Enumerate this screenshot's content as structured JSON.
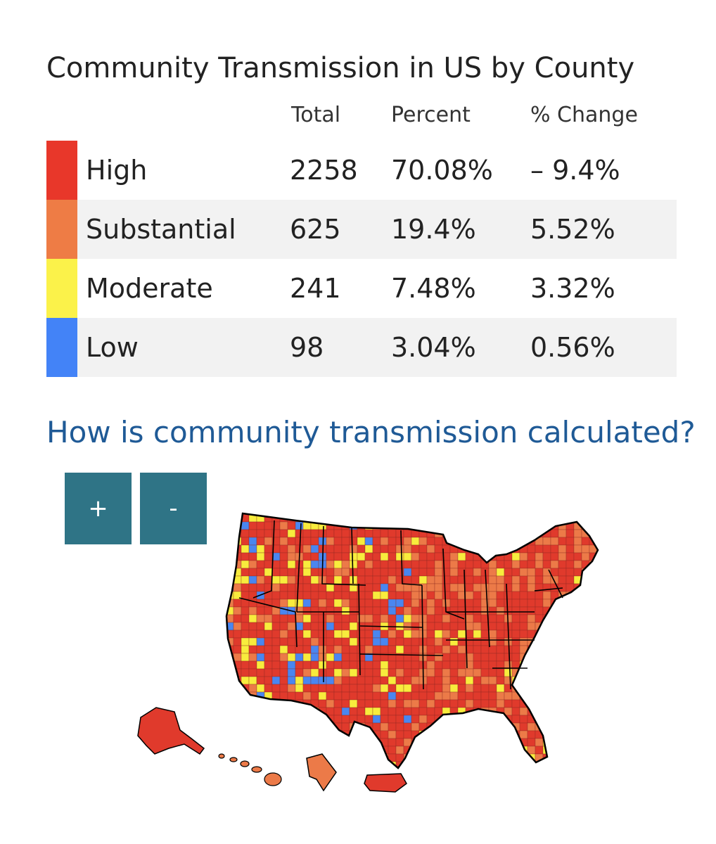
{
  "title": "Community Transmission in US by County",
  "columns": {
    "total": "Total",
    "percent": "Percent",
    "change": "% Change"
  },
  "rows": [
    {
      "label": "High",
      "total": "2258",
      "percent": "70.08%",
      "change": "– 9.4%",
      "color": "#e8372a"
    },
    {
      "label": "Substantial",
      "total": "625",
      "percent": "19.4%",
      "change": "5.52%",
      "color": "#ee7c45"
    },
    {
      "label": "Moderate",
      "total": "241",
      "percent": "7.48%",
      "change": "3.32%",
      "color": "#fbf24a"
    },
    {
      "label": "Low",
      "total": "98",
      "percent": "3.04%",
      "change": "0.56%",
      "color": "#4383f7"
    }
  ],
  "link_text": "How is community transmission calculated?",
  "zoom": {
    "in_label": "+",
    "out_label": "-"
  },
  "map": {
    "icon": "us-county-map",
    "fill_colors": {
      "high": "#e03a2c",
      "substantial": "#ec7a48",
      "moderate": "#f8ec3d",
      "low": "#4a86f0"
    },
    "border_color": "#000000"
  }
}
